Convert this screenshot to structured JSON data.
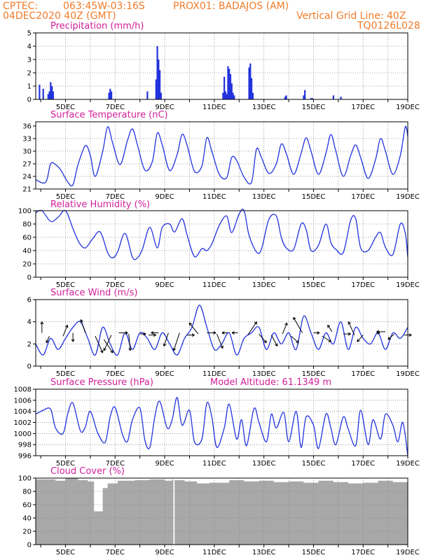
{
  "header": {
    "source": "CPTEC:",
    "coords": "063:45W-03:16S",
    "location": "PROX01: BADAJOS (AM)",
    "run": "04DEC2020 40Z (GMT)",
    "grid_note": "Vertical Grid Line: 40Z",
    "code": "TQ0126L028"
  },
  "colors": {
    "header": "#f07c2a",
    "title": "#d0209a",
    "series": "#2233dd",
    "cloud": "#a8a8a8"
  },
  "chart_data": [
    {
      "id": "precip",
      "type": "bar",
      "title": "Precipitation (mm/h)",
      "xlabels": [
        "5DEC",
        "7DEC",
        "9DEC",
        "11DEC",
        "13DEC",
        "15DEC",
        "17DEC",
        "19DEC"
      ],
      "xrange": [
        4.0,
        19.0
      ],
      "ylim": [
        0,
        5
      ],
      "yticks": [
        0,
        1,
        2,
        3,
        4,
        5
      ],
      "grid": true,
      "x": [
        4.15,
        4.3,
        4.5,
        4.55,
        4.6,
        4.65,
        4.7,
        6.95,
        7.0,
        7.05,
        8.5,
        8.85,
        8.9,
        8.95,
        9.0,
        9.05,
        11.55,
        11.6,
        11.65,
        11.7,
        11.75,
        11.8,
        11.85,
        11.9,
        11.95,
        12.0,
        12.6,
        12.65,
        12.7,
        12.75,
        14.05,
        14.1,
        14.8,
        14.85,
        15.1,
        15.15,
        16.0,
        16.3
      ],
      "values": [
        1.1,
        0.8,
        0.4,
        0.6,
        1.3,
        1.0,
        0.6,
        0.5,
        0.8,
        0.6,
        0.6,
        1.5,
        4.0,
        3.0,
        2.2,
        0.5,
        0.5,
        1.7,
        0.6,
        0.4,
        2.5,
        2.3,
        1.9,
        1.2,
        0.5,
        0.3,
        2.4,
        2.7,
        1.6,
        0.5,
        0.2,
        0.3,
        0.3,
        0.7,
        0.1,
        0.1,
        0.3,
        0.2
      ]
    },
    {
      "id": "temp",
      "type": "line",
      "title": "Surface Temperature (nC)",
      "xlabels": [
        "5DEC",
        "7DEC",
        "9DEC",
        "11DEC",
        "13DEC",
        "15DEC",
        "17DEC",
        "19DEC"
      ],
      "xrange": [
        4.0,
        19.0
      ],
      "ylim": [
        21,
        37
      ],
      "yticks": [
        21,
        24,
        27,
        30,
        33,
        36
      ],
      "grid": true,
      "x": [
        4.0,
        4.4,
        4.6,
        4.8,
        5.0,
        5.3,
        5.5,
        5.7,
        6.0,
        6.2,
        6.4,
        6.7,
        6.9,
        7.1,
        7.4,
        7.7,
        7.9,
        8.1,
        8.4,
        8.7,
        8.9,
        9.1,
        9.4,
        9.7,
        9.9,
        10.1,
        10.4,
        10.7,
        10.9,
        11.1,
        11.4,
        11.7,
        11.9,
        12.1,
        12.4,
        12.7,
        12.9,
        13.1,
        13.4,
        13.7,
        13.9,
        14.1,
        14.4,
        14.7,
        14.9,
        15.1,
        15.4,
        15.7,
        15.9,
        16.1,
        16.4,
        16.7,
        16.9,
        17.1,
        17.4,
        17.7,
        17.9,
        18.1,
        18.4,
        18.7,
        18.9,
        19.0
      ],
      "values": [
        23.2,
        22.6,
        27.0,
        26.8,
        25.6,
        22.6,
        22.0,
        26.7,
        31.3,
        29.0,
        24.0,
        30.0,
        35.8,
        32.0,
        26.8,
        32.6,
        35.3,
        31.5,
        25.5,
        27.5,
        34.3,
        31.5,
        25.4,
        29.2,
        34.0,
        31.5,
        25.2,
        26.5,
        33.2,
        30.0,
        24.5,
        23.7,
        28.5,
        27.8,
        23.8,
        22.6,
        30.5,
        28.5,
        24.7,
        27.0,
        31.7,
        29.5,
        24.5,
        29.5,
        33.2,
        30.0,
        24.5,
        29.5,
        34.0,
        30.0,
        24.0,
        29.0,
        31.5,
        28.5,
        23.5,
        28.0,
        33.0,
        30.0,
        24.5,
        29.0,
        35.8,
        33.5
      ]
    },
    {
      "id": "rh",
      "type": "line",
      "title": "Relative Humidity (%)",
      "xlabels": [
        "5DEC",
        "7DEC",
        "9DEC",
        "11DEC",
        "13DEC",
        "15DEC",
        "17DEC",
        "19DEC"
      ],
      "xrange": [
        4.0,
        19.0
      ],
      "ylim": [
        0,
        100
      ],
      "yticks": [
        0,
        20,
        40,
        60,
        80,
        100
      ],
      "grid": true,
      "x": [
        4.0,
        4.25,
        4.6,
        4.9,
        5.2,
        5.5,
        5.75,
        6.0,
        6.3,
        6.6,
        6.9,
        7.1,
        7.3,
        7.6,
        7.9,
        8.1,
        8.3,
        8.6,
        8.9,
        9.1,
        9.4,
        9.6,
        9.9,
        10.1,
        10.4,
        10.7,
        10.9,
        11.1,
        11.4,
        11.7,
        11.9,
        12.2,
        12.4,
        12.6,
        12.9,
        13.1,
        13.4,
        13.7,
        13.9,
        14.1,
        14.4,
        14.7,
        14.9,
        15.1,
        15.4,
        15.7,
        15.9,
        16.1,
        16.4,
        16.7,
        16.9,
        17.1,
        17.4,
        17.7,
        17.9,
        18.1,
        18.4,
        18.7,
        18.9,
        19.0
      ],
      "values": [
        97,
        100,
        84,
        90,
        100,
        73,
        52,
        44,
        58,
        68,
        37,
        29,
        38,
        66,
        30,
        29,
        42,
        75,
        44,
        75,
        80,
        68,
        88,
        64,
        31,
        43,
        40,
        50,
        78,
        92,
        67,
        95,
        100,
        63,
        38,
        42,
        87,
        92,
        60,
        44,
        42,
        80,
        72,
        40,
        48,
        80,
        52,
        42,
        37,
        86,
        88,
        44,
        40,
        60,
        67,
        45,
        34,
        80,
        66,
        30
      ],
      "y_orig_note": "rh"
    },
    {
      "id": "wind",
      "type": "line",
      "title": "Surface Wind (m/s)",
      "xlabels": [
        "5DEC",
        "7DEC",
        "9DEC",
        "11DEC",
        "13DEC",
        "15DEC",
        "17DEC",
        "19DEC"
      ],
      "xrange": [
        4.0,
        19.0
      ],
      "ylim": [
        0,
        6
      ],
      "yticks": [
        0,
        2,
        4,
        6
      ],
      "grid": true,
      "x": [
        4.0,
        4.3,
        4.6,
        4.9,
        5.2,
        5.5,
        5.8,
        6.1,
        6.4,
        6.7,
        7.0,
        7.3,
        7.6,
        7.9,
        8.2,
        8.5,
        8.8,
        9.1,
        9.4,
        9.7,
        10.0,
        10.3,
        10.6,
        10.9,
        11.2,
        11.5,
        11.8,
        12.1,
        12.4,
        12.7,
        13.0,
        13.3,
        13.6,
        13.9,
        14.2,
        14.5,
        14.8,
        15.1,
        15.4,
        15.7,
        16.0,
        16.3,
        16.6,
        16.9,
        17.2,
        17.5,
        17.8,
        18.1,
        18.4,
        18.7,
        19.0
      ],
      "values": [
        2.0,
        1.0,
        2.5,
        1.5,
        2.5,
        3.5,
        4.0,
        2.5,
        1.0,
        3.5,
        2.0,
        1.0,
        3.0,
        1.5,
        3.0,
        2.5,
        1.5,
        3.0,
        2.0,
        1.0,
        2.5,
        3.5,
        5.5,
        3.5,
        1.5,
        2.0,
        3.0,
        1.0,
        2.5,
        3.0,
        3.5,
        1.5,
        3.0,
        2.0,
        3.0,
        1.5,
        4.5,
        3.0,
        1.5,
        3.0,
        2.0,
        4.0,
        1.5,
        3.5,
        2.5,
        2.0,
        3.0,
        1.5,
        3.0,
        2.5,
        3.5
      ],
      "barbs_x": [
        4.25,
        4.55,
        5.1,
        5.5,
        6.0,
        6.4,
        6.75,
        7.05,
        7.35,
        7.75,
        8.2,
        8.55,
        8.95,
        9.35,
        9.8,
        10.1,
        10.55,
        10.9,
        11.3,
        11.75,
        12.15,
        12.55,
        13.0,
        13.5,
        13.95,
        14.3,
        14.75,
        15.2,
        15.55,
        15.95,
        16.4,
        16.85,
        17.2,
        17.75,
        18.1,
        18.45,
        18.85
      ],
      "barbs_y": [
        3.0,
        2.7,
        2.7,
        3.0,
        3.0,
        2.7,
        2.4,
        2.8,
        3.0,
        2.9,
        2.9,
        2.8,
        3.0,
        3.0,
        3.0,
        2.8,
        2.9,
        3.0,
        2.9,
        3.0,
        3.0,
        2.8,
        2.9,
        2.8,
        2.9,
        2.7,
        3.0,
        3.0,
        2.7,
        3.1,
        2.9,
        2.8,
        2.8,
        3.0,
        3.1,
        2.9,
        2.8
      ],
      "barbs_dx": [
        0.0,
        -0.2,
        0.3,
        0.0,
        -0.3,
        0.5,
        0.6,
        -0.5,
        0.6,
        0.1,
        0.4,
        0.5,
        -0.5,
        -0.3,
        -0.4,
        0.5,
        -0.6,
        0.6,
        0.4,
        -0.4,
        -0.4,
        0.6,
        0.5,
        0.4,
        0.3,
        0.5,
        -0.6,
        0.4,
        0.6,
        -0.3,
        0.5,
        -0.4,
        -0.4,
        0.2,
        -0.6,
        -0.4,
        0.5
      ],
      "barbs_dy": [
        1.0,
        -0.6,
        1.0,
        -0.8,
        1.2,
        -1.5,
        -1.2,
        -1.4,
        0.0,
        -1.5,
        0.0,
        0.0,
        0.0,
        -1.2,
        -1.6,
        0.0,
        1.0,
        0.0,
        -1.3,
        0.0,
        0.0,
        1.2,
        -0.8,
        -1.0,
        1.0,
        -0.6,
        1.4,
        0.0,
        -0.5,
        0.6,
        0.0,
        1.2,
        -0.6,
        0.0,
        0.0,
        -0.5,
        0.0
      ]
    },
    {
      "id": "press",
      "type": "line",
      "title": "Surface Pressure (hPa)",
      "annotation": "Model Altitude: 61.1349 m",
      "xlabels": [
        "5DEC",
        "7DEC",
        "9DEC",
        "11DEC",
        "13DEC",
        "15DEC",
        "17DEC",
        "19DEC"
      ],
      "xrange": [
        4.0,
        19.0
      ],
      "ylim": [
        996,
        1008
      ],
      "yticks": [
        996,
        998,
        1000,
        1002,
        1004,
        1006,
        1008
      ],
      "grid": true,
      "x": [
        4.0,
        4.3,
        4.6,
        4.8,
        5.1,
        5.3,
        5.5,
        5.8,
        6.0,
        6.2,
        6.5,
        6.8,
        7.0,
        7.2,
        7.5,
        7.7,
        7.9,
        8.2,
        8.4,
        8.6,
        8.8,
        9.0,
        9.3,
        9.5,
        9.7,
        9.9,
        10.2,
        10.4,
        10.7,
        10.9,
        11.1,
        11.3,
        11.6,
        11.8,
        12.1,
        12.3,
        12.5,
        12.8,
        13.0,
        13.3,
        13.5,
        13.7,
        14.0,
        14.2,
        14.5,
        14.7,
        14.9,
        15.2,
        15.4,
        15.7,
        15.9,
        16.1,
        16.4,
        16.6,
        16.9,
        17.1,
        17.4,
        17.6,
        17.9,
        18.1,
        18.4,
        18.6,
        18.8,
        19.0
      ],
      "values": [
        1003.5,
        1004.2,
        1004.4,
        1001.0,
        1000.0,
        1003.7,
        1005.5,
        1000.5,
        1001.2,
        1004.0,
        1000.1,
        998.4,
        1003.0,
        1004.7,
        999.8,
        998.6,
        1002.5,
        1004.6,
        998.8,
        997.5,
        1003.0,
        1005.8,
        1001.0,
        1002.5,
        1006.5,
        1001.5,
        1004.2,
        998.5,
        999.0,
        1005.5,
        1003.0,
        997.5,
        1001.0,
        1005.3,
        999.0,
        1002.5,
        997.8,
        1004.5,
        1002.0,
        998.5,
        1003.5,
        1001.0,
        1003.8,
        998.5,
        1004.0,
        997.5,
        1003.0,
        1001.5,
        997.3,
        1003.5,
        1001.0,
        998.0,
        1003.0,
        1000.8,
        997.8,
        1004.2,
        998.0,
        1002.5,
        999.0,
        1003.5,
        1001.5,
        998.5,
        1002.0,
        996.0
      ]
    },
    {
      "id": "cloud",
      "type": "area",
      "title": "Cloud Cover (%)",
      "xlabels": [
        "5DEC",
        "7DEC",
        "9DEC",
        "11DEC",
        "13DEC",
        "15DEC",
        "17DEC",
        "19DEC"
      ],
      "xrange": [
        4.0,
        19.0
      ],
      "ylim": [
        0,
        100
      ],
      "yticks": [
        0,
        20,
        40,
        60,
        80,
        100
      ],
      "grid": true,
      "x": [
        4.0,
        4.8,
        5.2,
        5.7,
        6.1,
        6.35,
        6.4,
        6.65,
        6.7,
        6.9,
        7.3,
        8.0,
        8.6,
        9.2,
        9.5,
        9.55,
        9.6,
        10.0,
        10.5,
        11.0,
        11.8,
        12.4,
        13.0,
        13.6,
        14.2,
        14.8,
        15.4,
        16.0,
        16.6,
        17.2,
        17.8,
        18.4,
        19.0
      ],
      "values": [
        98,
        96,
        100,
        97,
        95,
        50,
        50,
        50,
        85,
        92,
        96,
        97,
        98,
        96,
        98,
        0,
        97,
        95,
        92,
        93,
        97,
        95,
        96,
        94,
        95,
        93,
        96,
        94,
        92,
        93,
        96,
        94,
        93
      ]
    }
  ]
}
